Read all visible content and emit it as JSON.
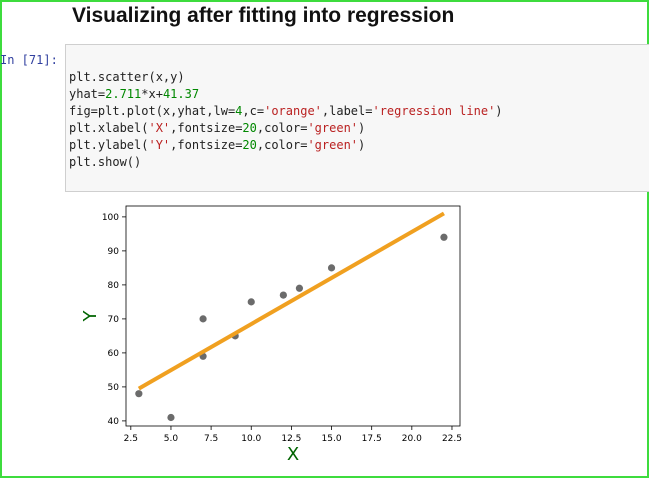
{
  "heading": "Visualizing after fitting into regression",
  "cell": {
    "prompt": "In [71]:",
    "code_lines": [
      "plt.scatter(x,y)",
      "yhat=2.711*x+41.37",
      "fig=plt.plot(x,yhat,lw=4,c='orange',label='regression line')",
      "plt.xlabel('X',fontsize=20,color='green')",
      "plt.ylabel('Y',fontsize=20,color='green')",
      "plt.show()"
    ]
  },
  "colors": {
    "frame": "#3ddc3d",
    "points": "#6b6b6b",
    "line": "#f0a020",
    "axis_label": "#006400",
    "prompt": "#303f9f"
  },
  "chart_data": {
    "type": "scatter",
    "title": "",
    "xlabel": "X",
    "ylabel": "Y",
    "xlim": [
      2.2,
      23.0
    ],
    "ylim": [
      38.5,
      103.2
    ],
    "xticks": [
      2.5,
      5.0,
      7.5,
      10.0,
      12.5,
      15.0,
      17.5,
      20.0,
      22.5
    ],
    "xtick_labels": [
      "2.5",
      "5.0",
      "7.5",
      "10.0",
      "12.5",
      "15.0",
      "17.5",
      "20.0",
      "22.5"
    ],
    "yticks": [
      40,
      50,
      60,
      70,
      80,
      90,
      100
    ],
    "ytick_labels": [
      "40",
      "50",
      "60",
      "70",
      "80",
      "90",
      "100"
    ],
    "grid": false,
    "points": [
      {
        "x": 3,
        "y": 48
      },
      {
        "x": 5,
        "y": 41
      },
      {
        "x": 7,
        "y": 70
      },
      {
        "x": 7,
        "y": 59
      },
      {
        "x": 9,
        "y": 65
      },
      {
        "x": 10,
        "y": 75
      },
      {
        "x": 12,
        "y": 77
      },
      {
        "x": 13,
        "y": 79
      },
      {
        "x": 15,
        "y": 85
      },
      {
        "x": 22,
        "y": 94
      }
    ],
    "regression_line": {
      "slope": 2.711,
      "intercept": 41.37,
      "x_range": [
        3,
        22
      ]
    }
  }
}
